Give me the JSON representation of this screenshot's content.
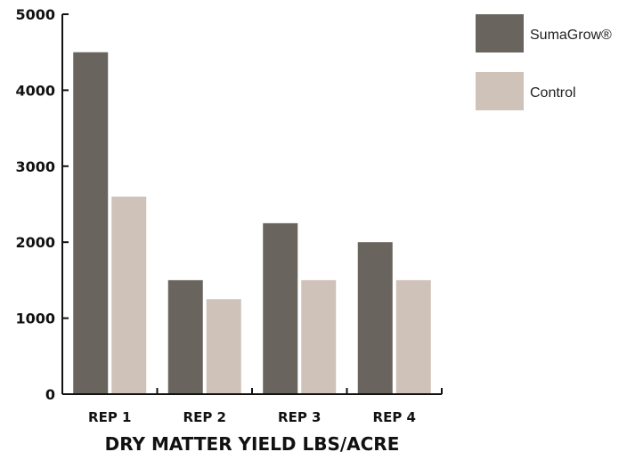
{
  "chart_data": {
    "type": "bar",
    "categories": [
      "REP 1",
      "REP 2",
      "REP 3",
      "REP 4"
    ],
    "series": [
      {
        "name": "SumaGrow®",
        "values": [
          4500,
          1500,
          2250,
          2000
        ],
        "color": "#6a645e"
      },
      {
        "name": "Control",
        "values": [
          2600,
          1250,
          1500,
          1500
        ],
        "color": "#cfc2b8"
      }
    ],
    "xlabel": "DRY MATTER YIELD LBS/ACRE",
    "ylabel": "",
    "ylim": [
      0,
      5000
    ],
    "yticks": [
      0,
      1000,
      2000,
      3000,
      4000,
      5000
    ],
    "grid": false,
    "legend_position": "top-right"
  }
}
